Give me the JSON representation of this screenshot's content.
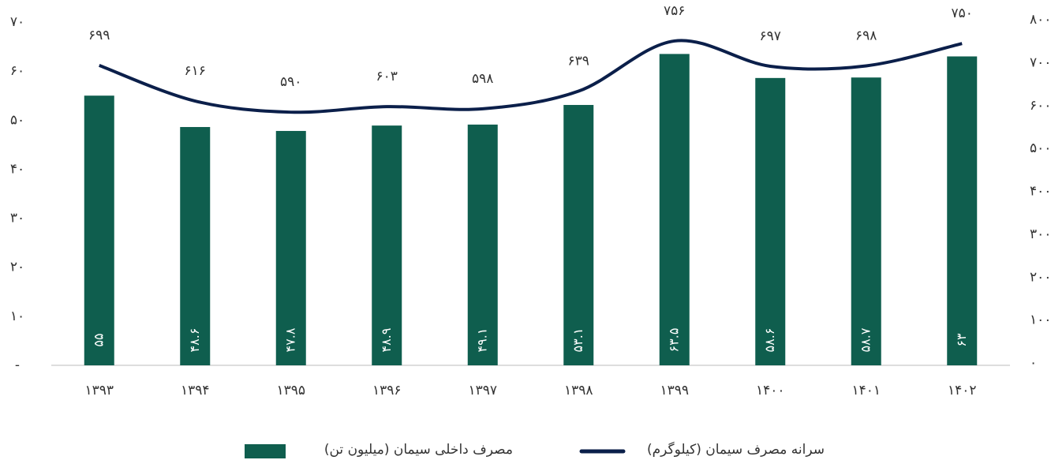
{
  "chart_data": {
    "type": "combo",
    "categories": [
      "۱۳۹۳",
      "۱۳۹۴",
      "۱۳۹۵",
      "۱۳۹۶",
      "۱۳۹۷",
      "۱۳۹۸",
      "۱۳۹۹",
      "۱۴۰۰",
      "۱۴۰۱",
      "۱۴۰۲"
    ],
    "series": [
      {
        "name": "مصرف داخلی سیمان (میلیون تن)",
        "type": "bar",
        "color": "#0f5e4e",
        "values": [
          55,
          48.6,
          47.8,
          48.9,
          49.1,
          53.1,
          63.5,
          58.6,
          58.7,
          63
        ],
        "value_labels": [
          "۵۵",
          "۴۸.۶",
          "۴۷.۸",
          "۴۸.۹",
          "۴۹.۱",
          "۵۳.۱",
          "۶۳.۵",
          "۵۸.۶",
          "۵۸.۷",
          "۶۳"
        ]
      },
      {
        "name": "سرانه مصرف سیمان (کیلوگرم)",
        "type": "line",
        "axis": "y2",
        "color": "#0b1f4a",
        "values": [
          699,
          616,
          590,
          603,
          598,
          639,
          756,
          697,
          698,
          750
        ],
        "value_labels": [
          "۶۹۹",
          "۶۱۶",
          "۵۹۰",
          "۶۰۳",
          "۵۹۸",
          "۶۳۹",
          "۷۵۶",
          "۶۹۷",
          "۶۹۸",
          "۷۵۰"
        ]
      }
    ],
    "ylim": [
      0,
      70
    ],
    "yticks": [
      {
        "value": 0,
        "label": "-"
      },
      {
        "value": 10,
        "label": "۱۰"
      },
      {
        "value": 20,
        "label": "۲۰"
      },
      {
        "value": 30,
        "label": "۳۰"
      },
      {
        "value": 40,
        "label": "۴۰"
      },
      {
        "value": 50,
        "label": "۵۰"
      },
      {
        "value": 60,
        "label": "۶۰"
      },
      {
        "value": 70,
        "label": "۷۰"
      }
    ],
    "y2lim": [
      0,
      800
    ],
    "y2ticks": [
      {
        "value": 0,
        "label": "۰"
      },
      {
        "value": 100,
        "label": "۱۰۰"
      },
      {
        "value": 200,
        "label": "۲۰۰"
      },
      {
        "value": 300,
        "label": "۳۰۰"
      },
      {
        "value": 400,
        "label": "۴۰۰"
      },
      {
        "value": 500,
        "label": "۵۰۰"
      },
      {
        "value": 600,
        "label": "۶۰۰"
      },
      {
        "value": 700,
        "label": "۷۰۰"
      },
      {
        "value": 800,
        "label": "۸۰۰"
      }
    ]
  }
}
